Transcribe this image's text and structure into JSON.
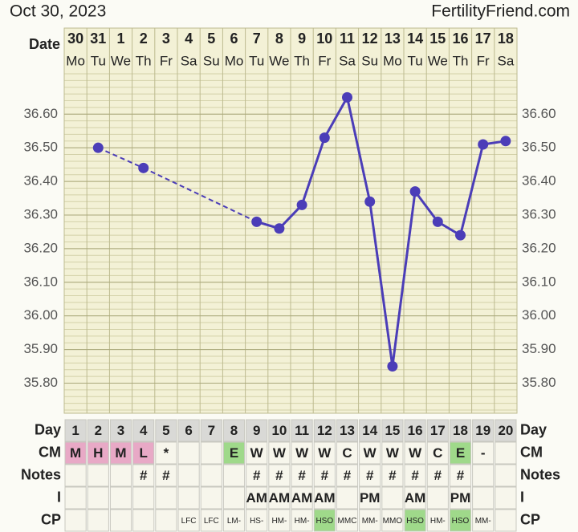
{
  "header": {
    "date": "Oct 30, 2023",
    "site": "FertilityFriend.com"
  },
  "chart_data": {
    "type": "line",
    "date_label": "Date",
    "dates": [
      "30",
      "31",
      "1",
      "2",
      "3",
      "4",
      "5",
      "6",
      "7",
      "8",
      "9",
      "10",
      "11",
      "12",
      "13",
      "14",
      "15",
      "16",
      "17",
      "18"
    ],
    "weekdays": [
      "Mo",
      "Tu",
      "We",
      "Th",
      "Fr",
      "Sa",
      "Su",
      "Mo",
      "Tu",
      "We",
      "Th",
      "Fr",
      "Sa",
      "Su",
      "Mo",
      "Tu",
      "We",
      "Th",
      "Fr",
      "Sa"
    ],
    "series": [
      {
        "color": "#4b3db8",
        "values": [
          null,
          36.5,
          null,
          36.44,
          null,
          null,
          null,
          null,
          36.28,
          36.26,
          36.33,
          36.53,
          36.65,
          36.34,
          35.85,
          36.37,
          36.28,
          36.24,
          36.51,
          36.52
        ]
      }
    ],
    "ylim": [
      35.72,
      36.72
    ],
    "yticks": [
      {
        "value": 35.8,
        "label": "35.80"
      },
      {
        "value": 35.9,
        "label": "35.90"
      },
      {
        "value": 36.0,
        "label": "36.00"
      },
      {
        "value": 36.1,
        "label": "36.10"
      },
      {
        "value": 36.2,
        "label": "36.20"
      },
      {
        "value": 36.3,
        "label": "36.30"
      },
      {
        "value": 36.4,
        "label": "36.40"
      },
      {
        "value": 36.5,
        "label": "36.50"
      },
      {
        "value": 36.6,
        "label": "36.60"
      }
    ],
    "grid": true
  },
  "table": {
    "rows": [
      {
        "label": "Day",
        "cells": [
          "1",
          "2",
          "3",
          "4",
          "5",
          "6",
          "7",
          "8",
          "9",
          "10",
          "11",
          "12",
          "13",
          "14",
          "15",
          "16",
          "17",
          "18",
          "19",
          "20"
        ],
        "fills": null
      },
      {
        "label": "CM",
        "cells": [
          "M",
          "H",
          "M",
          "L",
          "*",
          null,
          null,
          "E",
          "W",
          "W",
          "W",
          "W",
          "C",
          "W",
          "W",
          "W",
          "C",
          "E",
          "-",
          null
        ],
        "fills": [
          "#e8a9c6",
          "#e8a9c6",
          "#e8a9c6",
          "#e8a9c6",
          null,
          null,
          null,
          "#9fd98a",
          null,
          null,
          null,
          null,
          null,
          null,
          null,
          null,
          null,
          "#9fd98a",
          null,
          null
        ]
      },
      {
        "label": "Notes",
        "cells": [
          null,
          null,
          null,
          "#",
          "#",
          null,
          null,
          null,
          "#",
          "#",
          "#",
          "#",
          "#",
          "#",
          "#",
          "#",
          "#",
          "#",
          null,
          null
        ],
        "fills": null
      },
      {
        "label": "I",
        "cells": [
          null,
          null,
          null,
          null,
          null,
          null,
          null,
          null,
          "AM",
          "AM",
          "AM",
          "AM",
          null,
          "PM",
          null,
          "AM",
          null,
          "PM",
          null,
          null
        ],
        "fills": null
      },
      {
        "label": "CP",
        "cells": [
          null,
          null,
          null,
          null,
          null,
          "LFC",
          "LFC",
          "LM-",
          "HS-",
          "HM-",
          "HM-",
          "HSO",
          "MMC",
          "MM-",
          "MMO",
          "HSO",
          "HM-",
          "HSO",
          "MM-",
          null
        ],
        "fills": [
          null,
          null,
          null,
          null,
          null,
          null,
          null,
          null,
          null,
          null,
          null,
          "#9fd98a",
          null,
          null,
          null,
          "#9fd98a",
          null,
          "#9fd98a",
          null,
          null
        ]
      }
    ]
  }
}
